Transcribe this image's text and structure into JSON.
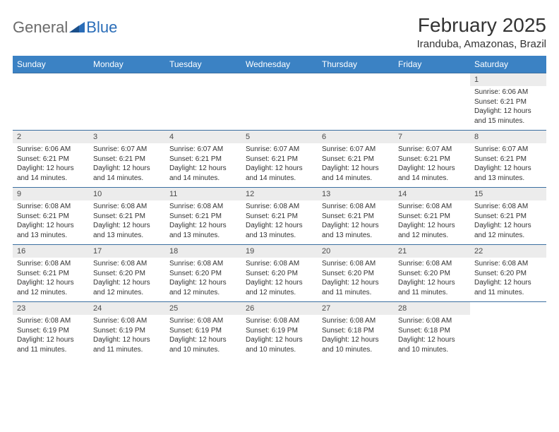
{
  "logo": {
    "text_a": "General",
    "text_b": "Blue",
    "accent_color": "#2a6db8",
    "gray_color": "#6b6b6b"
  },
  "title": "February 2025",
  "location": "Iranduba, Amazonas, Brazil",
  "header_bg": "#3b82c4",
  "daynum_bg": "#ececec",
  "border_color": "#3b6fa0",
  "weekdays": [
    "Sunday",
    "Monday",
    "Tuesday",
    "Wednesday",
    "Thursday",
    "Friday",
    "Saturday"
  ],
  "weeks": [
    {
      "nums": [
        "",
        "",
        "",
        "",
        "",
        "",
        "1"
      ],
      "cells": [
        null,
        null,
        null,
        null,
        null,
        null,
        {
          "sunrise": "Sunrise: 6:06 AM",
          "sunset": "Sunset: 6:21 PM",
          "daylight": "Daylight: 12 hours and 15 minutes."
        }
      ]
    },
    {
      "nums": [
        "2",
        "3",
        "4",
        "5",
        "6",
        "7",
        "8"
      ],
      "cells": [
        {
          "sunrise": "Sunrise: 6:06 AM",
          "sunset": "Sunset: 6:21 PM",
          "daylight": "Daylight: 12 hours and 14 minutes."
        },
        {
          "sunrise": "Sunrise: 6:07 AM",
          "sunset": "Sunset: 6:21 PM",
          "daylight": "Daylight: 12 hours and 14 minutes."
        },
        {
          "sunrise": "Sunrise: 6:07 AM",
          "sunset": "Sunset: 6:21 PM",
          "daylight": "Daylight: 12 hours and 14 minutes."
        },
        {
          "sunrise": "Sunrise: 6:07 AM",
          "sunset": "Sunset: 6:21 PM",
          "daylight": "Daylight: 12 hours and 14 minutes."
        },
        {
          "sunrise": "Sunrise: 6:07 AM",
          "sunset": "Sunset: 6:21 PM",
          "daylight": "Daylight: 12 hours and 14 minutes."
        },
        {
          "sunrise": "Sunrise: 6:07 AM",
          "sunset": "Sunset: 6:21 PM",
          "daylight": "Daylight: 12 hours and 14 minutes."
        },
        {
          "sunrise": "Sunrise: 6:07 AM",
          "sunset": "Sunset: 6:21 PM",
          "daylight": "Daylight: 12 hours and 13 minutes."
        }
      ]
    },
    {
      "nums": [
        "9",
        "10",
        "11",
        "12",
        "13",
        "14",
        "15"
      ],
      "cells": [
        {
          "sunrise": "Sunrise: 6:08 AM",
          "sunset": "Sunset: 6:21 PM",
          "daylight": "Daylight: 12 hours and 13 minutes."
        },
        {
          "sunrise": "Sunrise: 6:08 AM",
          "sunset": "Sunset: 6:21 PM",
          "daylight": "Daylight: 12 hours and 13 minutes."
        },
        {
          "sunrise": "Sunrise: 6:08 AM",
          "sunset": "Sunset: 6:21 PM",
          "daylight": "Daylight: 12 hours and 13 minutes."
        },
        {
          "sunrise": "Sunrise: 6:08 AM",
          "sunset": "Sunset: 6:21 PM",
          "daylight": "Daylight: 12 hours and 13 minutes."
        },
        {
          "sunrise": "Sunrise: 6:08 AM",
          "sunset": "Sunset: 6:21 PM",
          "daylight": "Daylight: 12 hours and 13 minutes."
        },
        {
          "sunrise": "Sunrise: 6:08 AM",
          "sunset": "Sunset: 6:21 PM",
          "daylight": "Daylight: 12 hours and 12 minutes."
        },
        {
          "sunrise": "Sunrise: 6:08 AM",
          "sunset": "Sunset: 6:21 PM",
          "daylight": "Daylight: 12 hours and 12 minutes."
        }
      ]
    },
    {
      "nums": [
        "16",
        "17",
        "18",
        "19",
        "20",
        "21",
        "22"
      ],
      "cells": [
        {
          "sunrise": "Sunrise: 6:08 AM",
          "sunset": "Sunset: 6:21 PM",
          "daylight": "Daylight: 12 hours and 12 minutes."
        },
        {
          "sunrise": "Sunrise: 6:08 AM",
          "sunset": "Sunset: 6:20 PM",
          "daylight": "Daylight: 12 hours and 12 minutes."
        },
        {
          "sunrise": "Sunrise: 6:08 AM",
          "sunset": "Sunset: 6:20 PM",
          "daylight": "Daylight: 12 hours and 12 minutes."
        },
        {
          "sunrise": "Sunrise: 6:08 AM",
          "sunset": "Sunset: 6:20 PM",
          "daylight": "Daylight: 12 hours and 12 minutes."
        },
        {
          "sunrise": "Sunrise: 6:08 AM",
          "sunset": "Sunset: 6:20 PM",
          "daylight": "Daylight: 12 hours and 11 minutes."
        },
        {
          "sunrise": "Sunrise: 6:08 AM",
          "sunset": "Sunset: 6:20 PM",
          "daylight": "Daylight: 12 hours and 11 minutes."
        },
        {
          "sunrise": "Sunrise: 6:08 AM",
          "sunset": "Sunset: 6:20 PM",
          "daylight": "Daylight: 12 hours and 11 minutes."
        }
      ]
    },
    {
      "nums": [
        "23",
        "24",
        "25",
        "26",
        "27",
        "28",
        ""
      ],
      "cells": [
        {
          "sunrise": "Sunrise: 6:08 AM",
          "sunset": "Sunset: 6:19 PM",
          "daylight": "Daylight: 12 hours and 11 minutes."
        },
        {
          "sunrise": "Sunrise: 6:08 AM",
          "sunset": "Sunset: 6:19 PM",
          "daylight": "Daylight: 12 hours and 11 minutes."
        },
        {
          "sunrise": "Sunrise: 6:08 AM",
          "sunset": "Sunset: 6:19 PM",
          "daylight": "Daylight: 12 hours and 10 minutes."
        },
        {
          "sunrise": "Sunrise: 6:08 AM",
          "sunset": "Sunset: 6:19 PM",
          "daylight": "Daylight: 12 hours and 10 minutes."
        },
        {
          "sunrise": "Sunrise: 6:08 AM",
          "sunset": "Sunset: 6:18 PM",
          "daylight": "Daylight: 12 hours and 10 minutes."
        },
        {
          "sunrise": "Sunrise: 6:08 AM",
          "sunset": "Sunset: 6:18 PM",
          "daylight": "Daylight: 12 hours and 10 minutes."
        },
        null
      ]
    }
  ]
}
